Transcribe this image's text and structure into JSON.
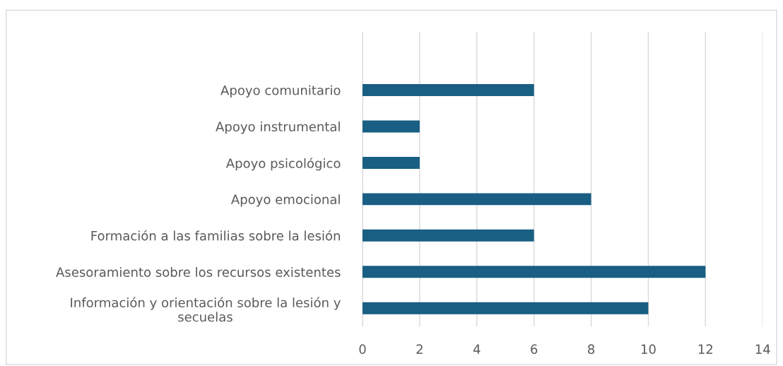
{
  "chart_data": {
    "type": "bar",
    "orientation": "horizontal",
    "categories": [
      "Apoyo comunitario",
      "Apoyo instrumental",
      "Apoyo psicológico",
      "Apoyo emocional",
      "Formación a las familias sobre la lesión",
      "Asesoramiento sobre los recursos existentes",
      "Información y orientación sobre la lesión y\nsecuelas"
    ],
    "values": [
      6,
      2,
      2,
      8,
      6,
      12,
      10
    ],
    "color": "#195e83",
    "xlim": [
      0,
      14
    ],
    "xticks": [
      0,
      2,
      4,
      6,
      8,
      10,
      12,
      14
    ],
    "grid": "x",
    "legend": false
  }
}
